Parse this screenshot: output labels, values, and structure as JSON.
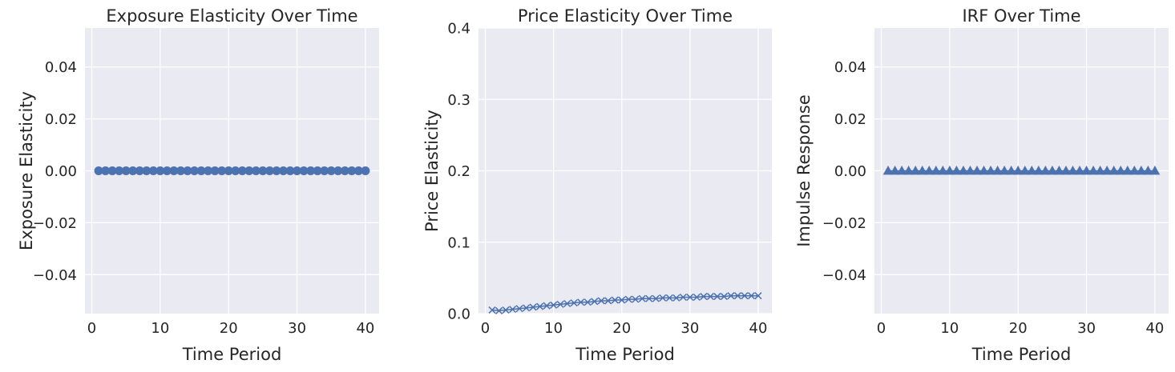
{
  "chart_data": [
    {
      "type": "scatter",
      "title": "Exposure Elasticity Over Time",
      "xlabel": "Time Period",
      "ylabel": "Exposure Elasticity",
      "xlim": [
        -1,
        42
      ],
      "ylim": [
        -0.055,
        0.055
      ],
      "xticks": [
        0,
        10,
        20,
        30,
        40
      ],
      "xtick_labels": [
        "0",
        "10",
        "20",
        "30",
        "40"
      ],
      "yticks": [
        -0.04,
        -0.02,
        0.0,
        0.02,
        0.04
      ],
      "ytick_labels": [
        "−0.04",
        "−0.02",
        "0.00",
        "0.02",
        "0.04"
      ],
      "grid": true,
      "marker": "circle",
      "color": "#4c72b0",
      "x": [
        1,
        2,
        3,
        4,
        5,
        6,
        7,
        8,
        9,
        10,
        11,
        12,
        13,
        14,
        15,
        16,
        17,
        18,
        19,
        20,
        21,
        22,
        23,
        24,
        25,
        26,
        27,
        28,
        29,
        30,
        31,
        32,
        33,
        34,
        35,
        36,
        37,
        38,
        39,
        40
      ],
      "y": [
        0,
        0,
        0,
        0,
        0,
        0,
        0,
        0,
        0,
        0,
        0,
        0,
        0,
        0,
        0,
        0,
        0,
        0,
        0,
        0,
        0,
        0,
        0,
        0,
        0,
        0,
        0,
        0,
        0,
        0,
        0,
        0,
        0,
        0,
        0,
        0,
        0,
        0,
        0,
        0
      ]
    },
    {
      "type": "line",
      "title": "Price Elasticity Over Time",
      "xlabel": "Time Period",
      "ylabel": "Price Elasticity",
      "xlim": [
        -1,
        42
      ],
      "ylim": [
        0.0,
        0.4
      ],
      "xticks": [
        0,
        10,
        20,
        30,
        40
      ],
      "xtick_labels": [
        "0",
        "10",
        "20",
        "30",
        "40"
      ],
      "yticks": [
        0.0,
        0.1,
        0.2,
        0.3,
        0.4
      ],
      "ytick_labels": [
        "0.0",
        "0.1",
        "0.2",
        "0.3",
        "0.4"
      ],
      "grid": true,
      "marker": "x",
      "color": "#4c72b0",
      "x": [
        1,
        2,
        3,
        4,
        5,
        6,
        7,
        8,
        9,
        10,
        11,
        12,
        13,
        14,
        15,
        16,
        17,
        18,
        19,
        20,
        21,
        22,
        23,
        24,
        25,
        26,
        27,
        28,
        29,
        30,
        31,
        32,
        33,
        34,
        35,
        36,
        37,
        38,
        39,
        40
      ],
      "y": [
        0.005,
        0.004,
        0.005,
        0.006,
        0.007,
        0.008,
        0.009,
        0.01,
        0.011,
        0.012,
        0.013,
        0.014,
        0.015,
        0.016,
        0.016,
        0.017,
        0.018,
        0.018,
        0.019,
        0.019,
        0.02,
        0.02,
        0.021,
        0.021,
        0.021,
        0.022,
        0.022,
        0.022,
        0.023,
        0.023,
        0.023,
        0.024,
        0.024,
        0.024,
        0.024,
        0.025,
        0.025,
        0.025,
        0.025,
        0.025
      ]
    },
    {
      "type": "line",
      "title": "IRF Over Time",
      "xlabel": "Time Period",
      "ylabel": "Impulse Response",
      "xlim": [
        -1,
        42
      ],
      "ylim": [
        -0.055,
        0.055
      ],
      "xticks": [
        0,
        10,
        20,
        30,
        40
      ],
      "xtick_labels": [
        "0",
        "10",
        "20",
        "30",
        "40"
      ],
      "yticks": [
        -0.04,
        -0.02,
        0.0,
        0.02,
        0.04
      ],
      "ytick_labels": [
        "−0.04",
        "−0.02",
        "0.00",
        "0.02",
        "0.04"
      ],
      "grid": true,
      "marker": "triangle",
      "color": "#4c72b0",
      "x": [
        1,
        2,
        3,
        4,
        5,
        6,
        7,
        8,
        9,
        10,
        11,
        12,
        13,
        14,
        15,
        16,
        17,
        18,
        19,
        20,
        21,
        22,
        23,
        24,
        25,
        26,
        27,
        28,
        29,
        30,
        31,
        32,
        33,
        34,
        35,
        36,
        37,
        38,
        39,
        40
      ],
      "y": [
        0,
        0,
        0,
        0,
        0,
        0,
        0,
        0,
        0,
        0,
        0,
        0,
        0,
        0,
        0,
        0,
        0,
        0,
        0,
        0,
        0,
        0,
        0,
        0,
        0,
        0,
        0,
        0,
        0,
        0,
        0,
        0,
        0,
        0,
        0,
        0,
        0,
        0,
        0,
        0
      ]
    }
  ]
}
